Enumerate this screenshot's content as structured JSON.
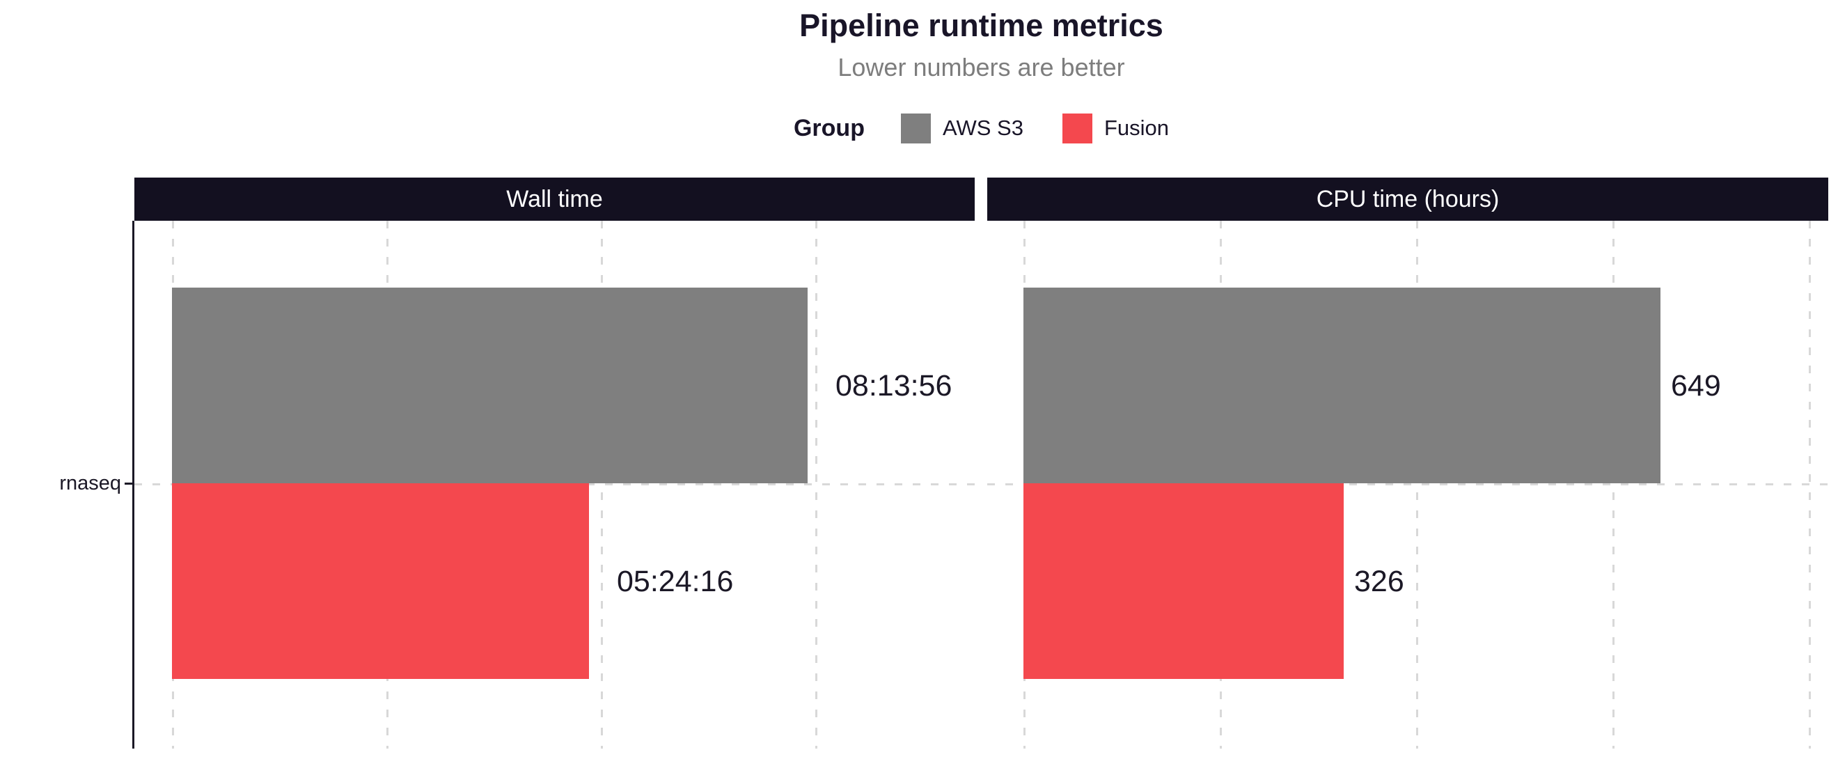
{
  "title": "Pipeline runtime metrics",
  "subtitle": "Lower numbers are better",
  "legend": {
    "title": "Group",
    "entries": [
      {
        "label": "AWS S3",
        "color": "#7f7f7f"
      },
      {
        "label": "Fusion",
        "color": "#f4484e"
      }
    ]
  },
  "colors": {
    "facet_header_bg": "#131020",
    "facet_header_text": "#ffffff",
    "grid": "#d8d8d8",
    "axis": "#1b1826",
    "text_dark": "#1b1826",
    "subtitle_gray": "#7d7d7d"
  },
  "chart_data": {
    "type": "bar",
    "orientation": "horizontal",
    "title": "Pipeline runtime metrics",
    "subtitle": "Lower numbers are better",
    "legend_position": "top",
    "grid": "vertical-dashed",
    "x_tick_labels_visible": false,
    "category_axis_label": "rnaseq",
    "categories": [
      "rnaseq"
    ],
    "group_legend_title": "Group",
    "groups": [
      "AWS S3",
      "Fusion"
    ],
    "panels": [
      {
        "facet_label": "Wall time",
        "unit": "hh:mm:ss (seconds used for scale)",
        "axis_range": [
          0,
          37300
        ],
        "gridlines": [
          0,
          10000,
          20000,
          30000
        ],
        "series": [
          {
            "group": "AWS S3",
            "category": "rnaseq",
            "value": 29636,
            "label": "08:13:56",
            "color": "#7f7f7f"
          },
          {
            "group": "Fusion",
            "category": "rnaseq",
            "value": 19456,
            "label": "05:24:16",
            "color": "#f4484e"
          }
        ]
      },
      {
        "facet_label": "CPU time (hours)",
        "unit": "hours",
        "axis_range": [
          0,
          820
        ],
        "gridlines": [
          0,
          200,
          400,
          600,
          800
        ],
        "series": [
          {
            "group": "AWS S3",
            "category": "rnaseq",
            "value": 649,
            "label": "649",
            "color": "#7f7f7f"
          },
          {
            "group": "Fusion",
            "category": "rnaseq",
            "value": 326,
            "label": "326",
            "color": "#f4484e"
          }
        ]
      }
    ]
  }
}
